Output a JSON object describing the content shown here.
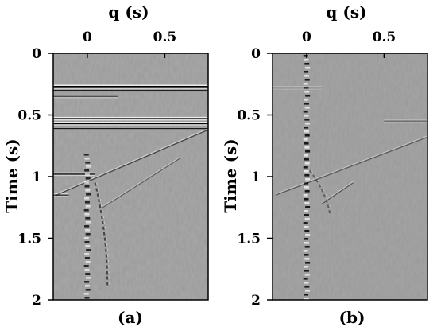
{
  "chart_data": [
    {
      "type": "heatmap",
      "panel_label": "(a)",
      "title": "",
      "xlabel": "q (s)",
      "ylabel": "Time (s)",
      "x_ticks": [
        "0",
        "0.5"
      ],
      "x_tick_values": [
        0,
        0.5
      ],
      "y_ticks": [
        "0",
        "0.5",
        "1",
        "1.5",
        "2"
      ],
      "y_tick_values": [
        0,
        0.5,
        1,
        1.5,
        2
      ],
      "xlim": [
        -0.22,
        0.78
      ],
      "ylim": [
        2,
        0
      ],
      "colormap": "grayscale seismic wiggle image",
      "features": [
        {
          "kind": "horizontal-event",
          "time": 0.27,
          "q_start": -0.22,
          "q_end": 0.78,
          "amplitude": 1.0
        },
        {
          "kind": "horizontal-event",
          "time": 0.3,
          "q_start": -0.22,
          "q_end": 0.78,
          "amplitude": 0.8
        },
        {
          "kind": "horizontal-event",
          "time": 0.35,
          "q_start": -0.22,
          "q_end": 0.2,
          "amplitude": 0.5
        },
        {
          "kind": "horizontal-event",
          "time": 0.53,
          "q_start": -0.22,
          "q_end": 0.78,
          "amplitude": 1.0
        },
        {
          "kind": "horizontal-event",
          "time": 0.57,
          "q_start": -0.22,
          "q_end": 0.78,
          "amplitude": 1.0
        },
        {
          "kind": "horizontal-event",
          "time": 0.61,
          "q_start": -0.22,
          "q_end": 0.78,
          "amplitude": 0.85
        },
        {
          "kind": "horizontal-event",
          "time": 0.98,
          "q_start": -0.22,
          "q_end": 0.05,
          "amplitude": 0.7
        },
        {
          "kind": "horizontal-event",
          "time": 1.15,
          "q_start": -0.22,
          "q_end": -0.12,
          "amplitude": 0.6
        },
        {
          "kind": "dipping-event",
          "time_start": 1.15,
          "time_end": 0.62,
          "q_start": -0.2,
          "q_end": 0.78,
          "amplitude": 0.7
        },
        {
          "kind": "dipping-event",
          "time_start": 1.25,
          "time_end": 0.85,
          "q_start": 0.1,
          "q_end": 0.6,
          "amplitude": 0.5
        },
        {
          "kind": "vertical-band",
          "q": 0.0,
          "time_start": 0.8,
          "time_end": 2.0,
          "amplitude": 0.9
        },
        {
          "kind": "curved-event",
          "time_start": 1.05,
          "time_end": 1.9,
          "q_start": 0.05,
          "q_end": 0.13,
          "amplitude": 0.7
        }
      ]
    },
    {
      "type": "heatmap",
      "panel_label": "(b)",
      "title": "",
      "xlabel": "q (s)",
      "ylabel": "Time (s)",
      "x_ticks": [
        "0",
        "0.5"
      ],
      "x_tick_values": [
        0,
        0.5
      ],
      "y_ticks": [
        "0",
        "0.5",
        "1",
        "1.5",
        "2"
      ],
      "y_tick_values": [
        0,
        0.5,
        1,
        1.5,
        2
      ],
      "xlim": [
        -0.22,
        0.78
      ],
      "ylim": [
        2,
        0
      ],
      "colormap": "grayscale seismic wiggle image",
      "features": [
        {
          "kind": "vertical-band",
          "q": 0.0,
          "time_start": 0.0,
          "time_end": 2.0,
          "amplitude": 1.0
        },
        {
          "kind": "horizontal-event",
          "time": 0.28,
          "q_start": -0.22,
          "q_end": 0.1,
          "amplitude": 0.35
        },
        {
          "kind": "horizontal-event",
          "time": 0.55,
          "q_start": 0.5,
          "q_end": 0.78,
          "amplitude": 0.3
        },
        {
          "kind": "dipping-event",
          "time_start": 1.15,
          "time_end": 0.68,
          "q_start": -0.2,
          "q_end": 0.78,
          "amplitude": 0.55
        },
        {
          "kind": "dipping-event",
          "time_start": 1.22,
          "time_end": 1.05,
          "q_start": 0.1,
          "q_end": 0.3,
          "amplitude": 0.6
        },
        {
          "kind": "curved-event",
          "time_start": 0.95,
          "time_end": 1.3,
          "q_start": 0.02,
          "q_end": 0.15,
          "amplitude": 0.5
        }
      ]
    }
  ]
}
